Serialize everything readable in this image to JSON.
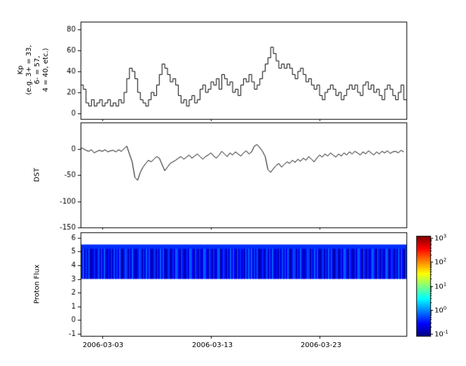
{
  "colors": {
    "line": "#000000",
    "axis": "#000000",
    "background": "#ffffff"
  },
  "xaxis": {
    "tick_labels": [
      "2006-03-03",
      "2006-03-13",
      "2006-03-23"
    ],
    "tick_positions_days": [
      2,
      12,
      22
    ],
    "span_days": 30,
    "x_start": "2006-03-01",
    "x_end": "2006-03-31"
  },
  "chart_data": [
    {
      "type": "line",
      "style": "step",
      "ylabel_lines": [
        "Kp",
        "(e.g. 3+ = 33,",
        "6- = 57,",
        "4 = 40, etc.)"
      ],
      "yticks": [
        0,
        20,
        40,
        60,
        80
      ],
      "ylim": [
        -5.3,
        87.3
      ],
      "points_per_day": 4,
      "values": [
        27,
        23,
        10,
        7,
        13,
        7,
        10,
        13,
        7,
        10,
        13,
        7,
        10,
        7,
        13,
        10,
        20,
        33,
        43,
        40,
        33,
        20,
        13,
        10,
        7,
        13,
        20,
        17,
        27,
        37,
        47,
        43,
        37,
        30,
        33,
        27,
        17,
        10,
        13,
        7,
        13,
        17,
        10,
        13,
        23,
        27,
        20,
        23,
        30,
        27,
        33,
        23,
        37,
        33,
        27,
        30,
        20,
        23,
        17,
        27,
        33,
        30,
        37,
        30,
        23,
        27,
        33,
        40,
        47,
        53,
        63,
        57,
        50,
        43,
        47,
        43,
        47,
        43,
        37,
        33,
        40,
        43,
        37,
        30,
        33,
        27,
        23,
        27,
        17,
        13,
        20,
        23,
        27,
        23,
        17,
        20,
        13,
        17,
        23,
        27,
        23,
        27,
        20,
        17,
        27,
        30,
        23,
        27,
        20,
        23,
        17,
        13,
        23,
        27,
        23,
        17,
        13,
        20,
        27,
        13
      ]
    },
    {
      "type": "line",
      "ylabel": "DST",
      "yticks": [
        0,
        -50,
        -100,
        -150
      ],
      "ylim": [
        -150,
        50
      ],
      "points_per_day": 4,
      "values": [
        2,
        0,
        -3,
        -5,
        -2,
        -8,
        -5,
        -3,
        -5,
        -2,
        -6,
        -4,
        -3,
        -6,
        -2,
        -5,
        0,
        5,
        -10,
        -25,
        -55,
        -60,
        -45,
        -35,
        -28,
        -22,
        -25,
        -20,
        -15,
        -18,
        -30,
        -42,
        -35,
        -28,
        -25,
        -22,
        -18,
        -15,
        -20,
        -16,
        -12,
        -18,
        -14,
        -10,
        -15,
        -20,
        -15,
        -12,
        -8,
        -14,
        -18,
        -12,
        -5,
        -10,
        -15,
        -8,
        -12,
        -6,
        -10,
        -14,
        -8,
        -4,
        -10,
        -6,
        5,
        8,
        2,
        -5,
        -15,
        -40,
        -45,
        -38,
        -32,
        -28,
        -35,
        -30,
        -25,
        -28,
        -22,
        -26,
        -20,
        -24,
        -18,
        -22,
        -15,
        -20,
        -25,
        -18,
        -12,
        -16,
        -10,
        -14,
        -8,
        -12,
        -16,
        -10,
        -14,
        -8,
        -12,
        -6,
        -10,
        -5,
        -8,
        -12,
        -6,
        -10,
        -4,
        -8,
        -12,
        -6,
        -10,
        -5,
        -8,
        -4,
        -9,
        -6,
        -5,
        -8,
        -3,
        -6
      ]
    },
    {
      "type": "heatmap",
      "ylabel": "Proton Flux",
      "yticks": [
        6,
        5,
        4,
        3,
        2,
        1,
        0,
        -1
      ],
      "ylim": [
        -1.15,
        6.4
      ],
      "band": {
        "ymin": 3.0,
        "ymax": 5.5
      },
      "intensity_digits": "592738104615827394051628374920587163940258716394820571639482057126398407512639840751623984075162398047516293840736251849",
      "colorbar": {
        "cmap": "jet",
        "scale": "log",
        "range_exponents": [
          -1,
          3
        ],
        "ticks": [
          {
            "base": "10",
            "exp": "3"
          },
          {
            "base": "10",
            "exp": "2"
          },
          {
            "base": "10",
            "exp": "1"
          },
          {
            "base": "10",
            "exp": "0"
          },
          {
            "base": "10",
            "exp": "-1"
          }
        ]
      }
    }
  ]
}
